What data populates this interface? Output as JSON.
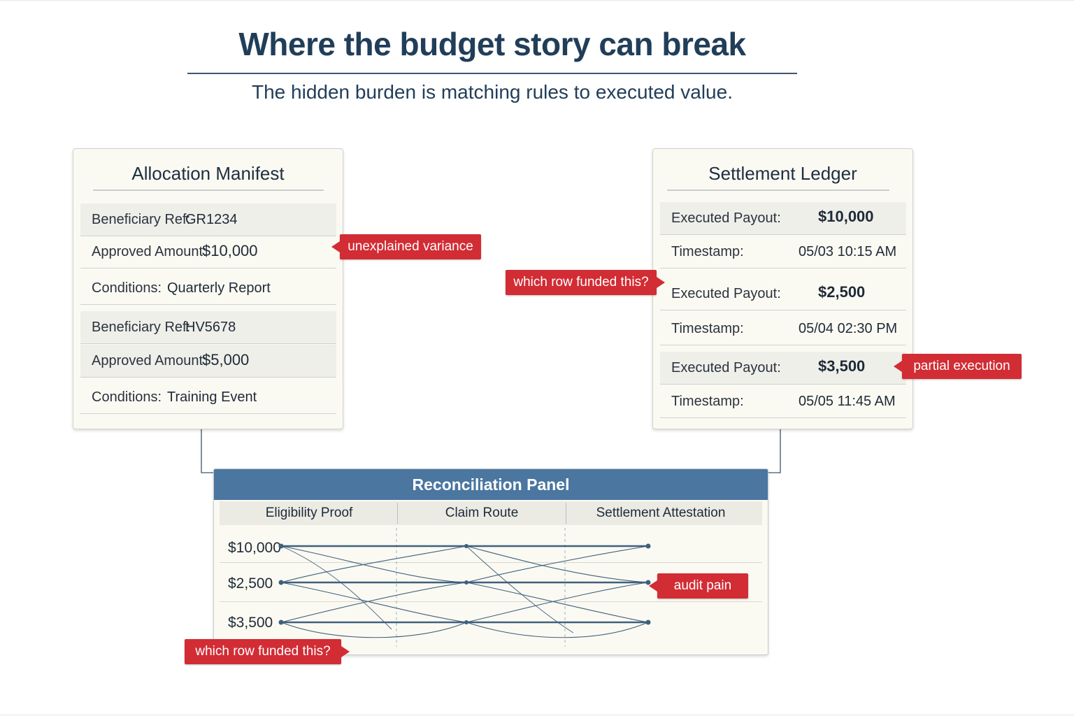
{
  "title": "Where the budget story can break",
  "subtitle": "The hidden burden is matching rules to executed value.",
  "allocation_manifest": {
    "title": "Allocation Manifest",
    "groups": [
      {
        "ref_label": "Beneficiary Ref:",
        "ref_value": "GR1234",
        "amount_label": "Approved Amount:",
        "amount_value": "$10,000",
        "conditions_label": "Conditions:",
        "conditions_value": "Quarterly Report"
      },
      {
        "ref_label": "Beneficiary Ref:",
        "ref_value": "HV5678",
        "amount_label": "Approved Amount:",
        "amount_value": "$5,000",
        "conditions_label": "Conditions:",
        "conditions_value": "Training Event"
      }
    ]
  },
  "settlement_ledger": {
    "title": "Settlement Ledger",
    "entries": [
      {
        "payout_label": "Executed Payout:",
        "payout_value": "$10,000",
        "timestamp_label": "Timestamp:",
        "timestamp_value": "05/03 10:15 AM"
      },
      {
        "payout_label": "Executed Payout:",
        "payout_value": "$2,500",
        "timestamp_label": "Timestamp:",
        "timestamp_value": "05/04 02:30 PM"
      },
      {
        "payout_label": "Executed Payout:",
        "payout_value": "$3,500",
        "timestamp_label": "Timestamp:",
        "timestamp_value": "05/05 11:45 AM"
      }
    ]
  },
  "reconciliation_panel": {
    "title": "Reconciliation Panel",
    "columns": [
      "Eligibility Proof",
      "Claim Route",
      "Settlement Attestation"
    ],
    "rows": [
      "$10,000",
      "$2,500",
      "$3,500"
    ]
  },
  "callouts": {
    "unexplained_variance": "unexplained variance",
    "which_row_ledger": "which row funded this?",
    "partial_execution": "partial execution",
    "audit_pain": "audit pain",
    "which_row_panel": "which row funded this?"
  },
  "colors": {
    "accent_red": "#d22c34",
    "panel_header": "#4a76a0",
    "title": "#213e59",
    "card_bg": "#fbfaf2"
  }
}
